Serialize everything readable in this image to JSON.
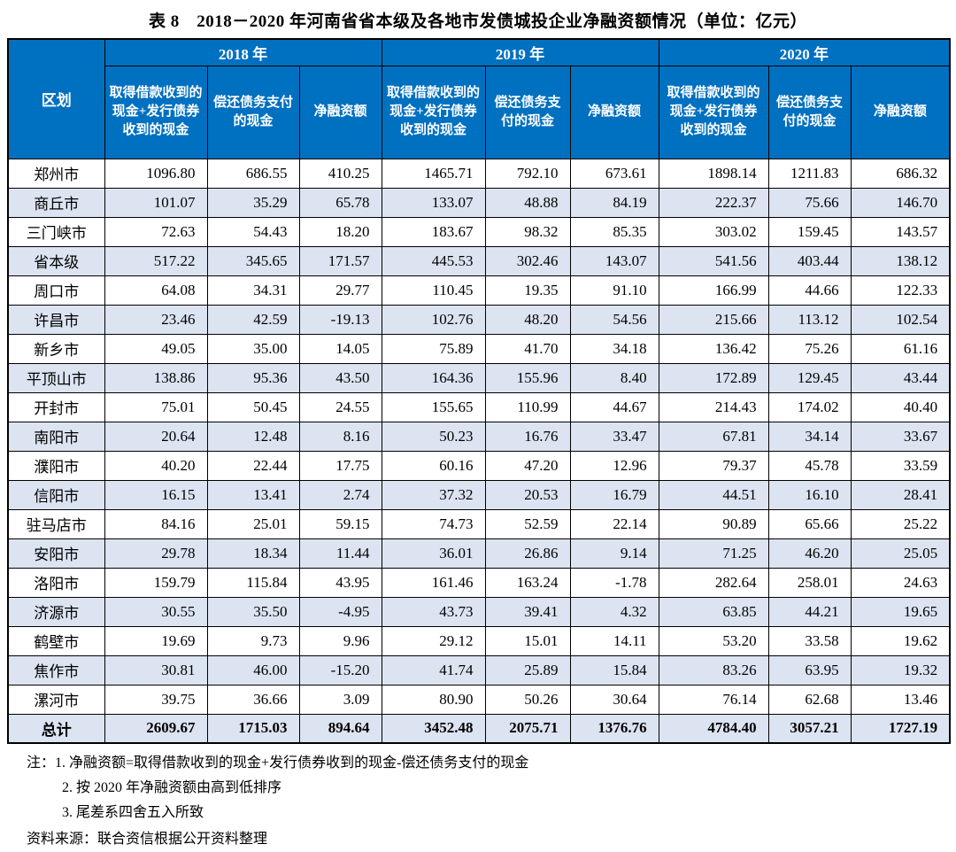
{
  "title": "表 8　2018－2020 年河南省省本级及各地市发债城投企业净融资额情况（单位：亿元）",
  "colors": {
    "header_bg": "#0070C0",
    "header_text": "#FFFFFF",
    "stripe_bg": "#DCE4F2",
    "border": "#000000"
  },
  "table": {
    "region_header": "区划",
    "year_groups": [
      {
        "year": "2018 年",
        "columns": [
          "取得借款收到的现金+发行债券收到的现金",
          "偿还债务支付的现金",
          "净融资额"
        ]
      },
      {
        "year": "2019 年",
        "columns": [
          "取得借款收到的现金+发行债券收到的现金",
          "偿还债务支付的现金",
          "净融资额"
        ]
      },
      {
        "year": "2020 年",
        "columns": [
          "取得借款收到的现金+发行债券收到的现金",
          "偿还债务支付的现金",
          "净融资额"
        ]
      }
    ],
    "rows": [
      {
        "region": "郑州市",
        "values": [
          "1096.80",
          "686.55",
          "410.25",
          "1465.71",
          "792.10",
          "673.61",
          "1898.14",
          "1211.83",
          "686.32"
        ]
      },
      {
        "region": "商丘市",
        "values": [
          "101.07",
          "35.29",
          "65.78",
          "133.07",
          "48.88",
          "84.19",
          "222.37",
          "75.66",
          "146.70"
        ]
      },
      {
        "region": "三门峡市",
        "values": [
          "72.63",
          "54.43",
          "18.20",
          "183.67",
          "98.32",
          "85.35",
          "303.02",
          "159.45",
          "143.57"
        ]
      },
      {
        "region": "省本级",
        "values": [
          "517.22",
          "345.65",
          "171.57",
          "445.53",
          "302.46",
          "143.07",
          "541.56",
          "403.44",
          "138.12"
        ]
      },
      {
        "region": "周口市",
        "values": [
          "64.08",
          "34.31",
          "29.77",
          "110.45",
          "19.35",
          "91.10",
          "166.99",
          "44.66",
          "122.33"
        ]
      },
      {
        "region": "许昌市",
        "values": [
          "23.46",
          "42.59",
          "-19.13",
          "102.76",
          "48.20",
          "54.56",
          "215.66",
          "113.12",
          "102.54"
        ]
      },
      {
        "region": "新乡市",
        "values": [
          "49.05",
          "35.00",
          "14.05",
          "75.89",
          "41.70",
          "34.18",
          "136.42",
          "75.26",
          "61.16"
        ]
      },
      {
        "region": "平顶山市",
        "values": [
          "138.86",
          "95.36",
          "43.50",
          "164.36",
          "155.96",
          "8.40",
          "172.89",
          "129.45",
          "43.44"
        ]
      },
      {
        "region": "开封市",
        "values": [
          "75.01",
          "50.45",
          "24.55",
          "155.65",
          "110.99",
          "44.67",
          "214.43",
          "174.02",
          "40.40"
        ]
      },
      {
        "region": "南阳市",
        "values": [
          "20.64",
          "12.48",
          "8.16",
          "50.23",
          "16.76",
          "33.47",
          "67.81",
          "34.14",
          "33.67"
        ]
      },
      {
        "region": "濮阳市",
        "values": [
          "40.20",
          "22.44",
          "17.75",
          "60.16",
          "47.20",
          "12.96",
          "79.37",
          "45.78",
          "33.59"
        ]
      },
      {
        "region": "信阳市",
        "values": [
          "16.15",
          "13.41",
          "2.74",
          "37.32",
          "20.53",
          "16.79",
          "44.51",
          "16.10",
          "28.41"
        ]
      },
      {
        "region": "驻马店市",
        "values": [
          "84.16",
          "25.01",
          "59.15",
          "74.73",
          "52.59",
          "22.14",
          "90.89",
          "65.66",
          "25.22"
        ]
      },
      {
        "region": "安阳市",
        "values": [
          "29.78",
          "18.34",
          "11.44",
          "36.01",
          "26.86",
          "9.14",
          "71.25",
          "46.20",
          "25.05"
        ]
      },
      {
        "region": "洛阳市",
        "values": [
          "159.79",
          "115.84",
          "43.95",
          "161.46",
          "163.24",
          "-1.78",
          "282.64",
          "258.01",
          "24.63"
        ]
      },
      {
        "region": "济源市",
        "values": [
          "30.55",
          "35.50",
          "-4.95",
          "43.73",
          "39.41",
          "4.32",
          "63.85",
          "44.21",
          "19.65"
        ]
      },
      {
        "region": "鹤壁市",
        "values": [
          "19.69",
          "9.73",
          "9.96",
          "29.12",
          "15.01",
          "14.11",
          "53.20",
          "33.58",
          "19.62"
        ]
      },
      {
        "region": "焦作市",
        "values": [
          "30.81",
          "46.00",
          "-15.20",
          "41.74",
          "25.89",
          "15.84",
          "83.26",
          "63.95",
          "19.32"
        ]
      },
      {
        "region": "漯河市",
        "values": [
          "39.75",
          "36.66",
          "3.09",
          "80.90",
          "50.26",
          "30.64",
          "76.14",
          "62.68",
          "13.46"
        ]
      }
    ],
    "total_row": {
      "region": "总计",
      "values": [
        "2609.67",
        "1715.03",
        "894.64",
        "3452.48",
        "2075.71",
        "1376.76",
        "4784.40",
        "3057.21",
        "1727.19"
      ]
    }
  },
  "notes": {
    "prefix": "注：",
    "items": [
      "1. 净融资额=取得借款收到的现金+发行债券收到的现金-偿还债务支付的现金",
      "2. 按 2020 年净融资额由高到低排序",
      "3. 尾差系四舍五入所致"
    ],
    "source": "资料来源：联合资信根据公开资料整理"
  }
}
